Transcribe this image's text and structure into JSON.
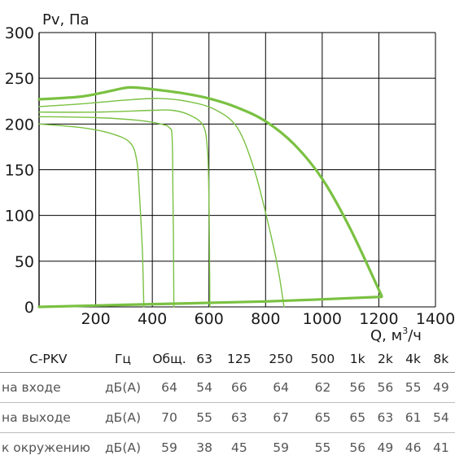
{
  "chart_data": {
    "type": "line",
    "ylabel": "Pv, Па",
    "xlabel_main": "Q, м",
    "xlabel_sup": "3",
    "xlabel_tail": "/ч",
    "xlim": [
      0,
      1400
    ],
    "ylim": [
      0,
      300
    ],
    "x_ticks": [
      "200",
      "400",
      "600",
      "800",
      "1000",
      "1200",
      "1400"
    ],
    "y_ticks": [
      "0",
      "50",
      "100",
      "150",
      "200",
      "250",
      "300"
    ],
    "x_tick_values": [
      200,
      400,
      600,
      800,
      1000,
      1200,
      1400
    ],
    "y_tick_values": [
      0,
      50,
      100,
      150,
      200,
      250,
      300
    ],
    "grid": true,
    "series": [
      {
        "role": "envelope",
        "points": [
          [
            0,
            227
          ],
          [
            150,
            230
          ],
          [
            250,
            236
          ],
          [
            320,
            240
          ],
          [
            400,
            238
          ],
          [
            500,
            234
          ],
          [
            600,
            228
          ],
          [
            700,
            218
          ],
          [
            800,
            203
          ],
          [
            900,
            178
          ],
          [
            1000,
            140
          ],
          [
            1100,
            85
          ],
          [
            1210,
            12
          ]
        ]
      },
      {
        "role": "system",
        "points": [
          [
            0,
            0
          ],
          [
            400,
            3
          ],
          [
            800,
            6
          ],
          [
            1210,
            11
          ]
        ]
      },
      {
        "role": "speed",
        "points": [
          [
            0,
            219
          ],
          [
            150,
            222
          ],
          [
            300,
            226
          ],
          [
            420,
            228
          ],
          [
            520,
            225
          ],
          [
            620,
            216
          ],
          [
            700,
            196
          ],
          [
            760,
            150
          ],
          [
            810,
            90
          ],
          [
            845,
            40
          ],
          [
            865,
            0
          ]
        ]
      },
      {
        "role": "speed",
        "points": [
          [
            0,
            213
          ],
          [
            200,
            213
          ],
          [
            400,
            215
          ],
          [
            470,
            215
          ],
          [
            530,
            210
          ],
          [
            580,
            198
          ],
          [
            595,
            170
          ],
          [
            600,
            120
          ],
          [
            602,
            60
          ],
          [
            603,
            0
          ]
        ]
      },
      {
        "role": "speed",
        "points": [
          [
            0,
            208
          ],
          [
            200,
            207
          ],
          [
            350,
            204
          ],
          [
            430,
            200
          ],
          [
            460,
            196
          ],
          [
            470,
            185
          ],
          [
            473,
            120
          ],
          [
            475,
            60
          ],
          [
            476,
            0
          ]
        ]
      },
      {
        "role": "speed",
        "points": [
          [
            0,
            200
          ],
          [
            150,
            196
          ],
          [
            250,
            190
          ],
          [
            320,
            180
          ],
          [
            345,
            160
          ],
          [
            355,
            120
          ],
          [
            365,
            60
          ],
          [
            370,
            0
          ]
        ]
      }
    ]
  },
  "noise_table": {
    "headers": [
      "C-PKV",
      "Гц",
      "Общ.",
      "63",
      "125",
      "250",
      "500",
      "1k",
      "2k",
      "4k",
      "8k"
    ],
    "rows": [
      [
        "на входе",
        "дБ(А)",
        "64",
        "54",
        "66",
        "64",
        "62",
        "56",
        "56",
        "55",
        "49"
      ],
      [
        "на выходе",
        "дБ(А)",
        "70",
        "55",
        "63",
        "67",
        "65",
        "65",
        "63",
        "61",
        "54"
      ],
      [
        "к окружению",
        "дБ(А)",
        "59",
        "38",
        "45",
        "59",
        "55",
        "56",
        "49",
        "46",
        "41"
      ]
    ]
  },
  "colors": {
    "curve": "#7ac142",
    "grid": "#000000",
    "text": "#1a1a1a",
    "table_value": "#555555"
  }
}
